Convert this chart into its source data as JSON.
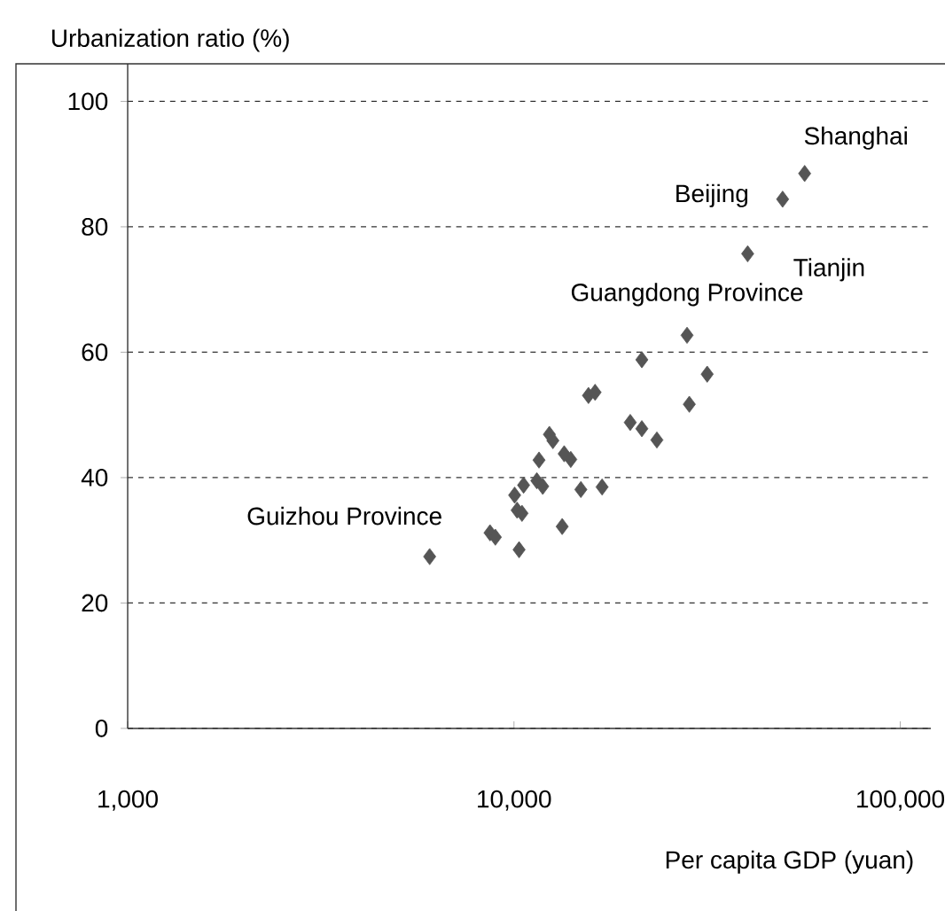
{
  "chart_data": {
    "type": "scatter",
    "xlabel": "Per capita GDP (yuan)",
    "ylabel": "Urbanization ratio (%)",
    "log": "x",
    "grid": "y",
    "marker": "diamond",
    "xlim": [
      1000,
      120000
    ],
    "ylim": [
      0,
      106
    ],
    "xticks": [
      {
        "value": 1000,
        "label": "1,000"
      },
      {
        "value": 10000,
        "label": "10,000"
      },
      {
        "value": 100000,
        "label": "100,000"
      }
    ],
    "yticks": [
      0,
      20,
      40,
      60,
      80,
      100
    ],
    "series": [
      {
        "color": "#555555",
        "x": [
          56560,
          49600,
          40270,
          28060,
          21430,
          31640,
          15590,
          16220,
          28440,
          20000,
          21430,
          23440,
          12350,
          12610,
          13490,
          14030,
          11610,
          14900,
          16910,
          13330,
          11460,
          11870,
          10590,
          10040,
          10190,
          10490,
          8670,
          8950,
          10310,
          6050
        ],
        "values": [
          88.5,
          84.4,
          75.7,
          62.7,
          58.8,
          56.5,
          53.1,
          53.6,
          51.7,
          48.8,
          47.8,
          46.0,
          46.9,
          45.9,
          43.8,
          42.9,
          42.8,
          38.1,
          38.5,
          32.2,
          39.5,
          38.6,
          38.8,
          37.2,
          34.8,
          34.3,
          31.2,
          30.5,
          28.5,
          27.4
        ]
      }
    ],
    "annotations": [
      {
        "text": "Shanghai",
        "x": 56560,
        "y": 88.5
      },
      {
        "text": "Beijing",
        "x": 49600,
        "y": 84.4
      },
      {
        "text": "Tianjin",
        "x": 40270,
        "y": 75.7
      },
      {
        "text": "Guangdong Province",
        "x": 28060,
        "y": 62.7
      },
      {
        "text": "Guizhou Province",
        "x": 6050,
        "y": 27.4
      }
    ]
  }
}
